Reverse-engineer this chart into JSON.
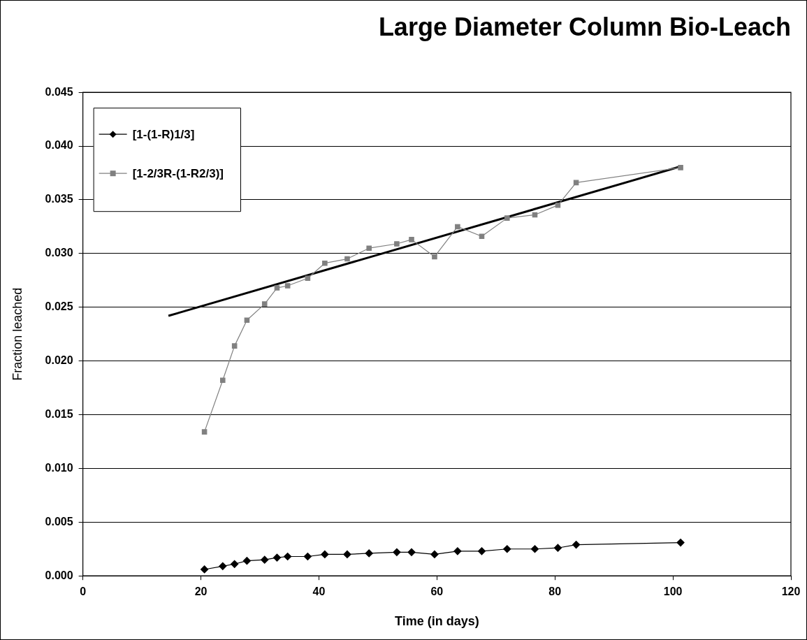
{
  "chart_data": {
    "type": "line",
    "title": "Large Diameter Column Bio-Leach",
    "xlabel": "Time (in days)",
    "ylabel": "Fraction leached",
    "xlim": [
      0,
      120
    ],
    "xticks": [
      0,
      20,
      40,
      60,
      80,
      100,
      120
    ],
    "ylim": [
      0,
      0.045
    ],
    "yticks": [
      {
        "value": 0,
        "label": "0.000"
      },
      {
        "value": 0.005,
        "label": "0.005"
      },
      {
        "value": 0.01,
        "label": "0.010"
      },
      {
        "value": 0.015,
        "label": "0.015"
      },
      {
        "value": 0.02,
        "label": "0.020"
      },
      {
        "value": 0.025,
        "label": "0.025"
      },
      {
        "value": 0.03,
        "label": "0.030"
      },
      {
        "value": 0.035,
        "label": "0.035"
      },
      {
        "value": 0.04,
        "label": "0.040"
      },
      {
        "value": 0.045,
        "label": "0.045"
      }
    ],
    "grid": "y",
    "legend": "top left",
    "series": [
      {
        "name": "[1-(1-R)1/3]",
        "color": "#000000",
        "marker": "diamond",
        "x": [
          20.6,
          23.7,
          25.7,
          27.8,
          30.8,
          32.9,
          34.7,
          38.1,
          41,
          44.8,
          48.5,
          53.2,
          55.7,
          59.6,
          63.5,
          67.6,
          71.9,
          76.6,
          80.5,
          83.6,
          101.3
        ],
        "values": [
          0.0006,
          0.0009,
          0.0011,
          0.0014,
          0.0015,
          0.0017,
          0.0018,
          0.0018,
          0.002,
          0.002,
          0.0021,
          0.0022,
          0.0022,
          0.002,
          0.0023,
          0.0023,
          0.0025,
          0.0025,
          0.0026,
          0.0029,
          0.0031
        ]
      },
      {
        "name": "[1-2/3R-(1-R2/3)]",
        "color": "#808080",
        "marker": "square",
        "x": [
          20.6,
          23.7,
          25.7,
          27.8,
          30.8,
          32.9,
          34.7,
          38.1,
          41,
          44.8,
          48.5,
          53.2,
          55.7,
          59.6,
          63.5,
          67.6,
          71.9,
          76.6,
          80.5,
          83.6,
          101.3
        ],
        "values": [
          0.0134,
          0.0182,
          0.0214,
          0.0238,
          0.0253,
          0.0268,
          0.027,
          0.0277,
          0.0291,
          0.0295,
          0.0305,
          0.0309,
          0.0313,
          0.0297,
          0.0325,
          0.0316,
          0.0333,
          0.0336,
          0.0345,
          0.0366,
          0.038
        ]
      },
      {
        "type": "line",
        "color": "#000000",
        "marker": "none",
        "x": [
          14.5,
          101.3
        ],
        "values": [
          0.0242,
          0.0381
        ]
      }
    ]
  }
}
